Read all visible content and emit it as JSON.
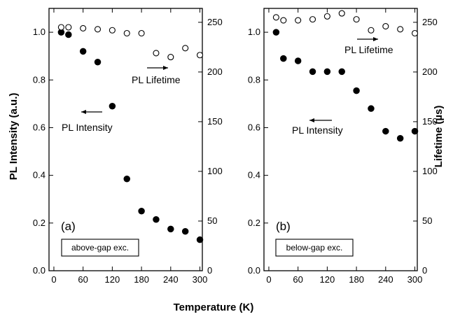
{
  "figure": {
    "shared_xlabel": "Temperature (K)",
    "left_ylabel": "PL Intensity (a.u.)",
    "right_ylabel": "Lifetime (µs)"
  },
  "chart_data": [
    {
      "type": "scatter",
      "panel_label": "(a)",
      "condition_label": "above-gap exc.",
      "xlabel": "Temperature (K)",
      "ylabel": "PL Intensity (a.u.)",
      "y2label": "",
      "xlim": [
        -10,
        305
      ],
      "ylim": [
        0,
        1.1
      ],
      "y2lim": [
        0,
        264
      ],
      "x_ticks": [
        0,
        60,
        120,
        180,
        240,
        300
      ],
      "y_ticks": [
        0.0,
        0.2,
        0.4,
        0.6,
        0.8,
        1.0
      ],
      "y2_ticks": [
        0,
        50,
        100,
        150,
        200,
        250
      ],
      "grid": false,
      "series": [
        {
          "name": "PL Intensity",
          "axis": "left",
          "marker": "filled-circle",
          "x": [
            15,
            30,
            60,
            90,
            120,
            150,
            180,
            210,
            240,
            270,
            300
          ],
          "y": [
            1.0,
            0.99,
            0.92,
            0.875,
            0.69,
            0.385,
            0.25,
            0.215,
            0.175,
            0.165,
            0.13
          ]
        },
        {
          "name": "PL Lifetime",
          "axis": "right",
          "marker": "open-circle",
          "x": [
            15,
            30,
            60,
            90,
            120,
            150,
            180,
            210,
            240,
            270,
            300
          ],
          "y": [
            245,
            245,
            244,
            243,
            242,
            239,
            239,
            219,
            215,
            224,
            217
          ]
        }
      ],
      "annotations": [
        {
          "text": "PL Lifetime",
          "arrow": "right"
        },
        {
          "text": "PL Intensity",
          "arrow": "left"
        }
      ]
    },
    {
      "type": "scatter",
      "panel_label": "(b)",
      "condition_label": "below-gap exc.",
      "xlabel": "",
      "ylabel": "",
      "y2label": "Lifetime (µs)",
      "xlim": [
        -10,
        305
      ],
      "ylim": [
        0,
        1.1
      ],
      "y2lim": [
        0,
        264
      ],
      "x_ticks": [
        0,
        60,
        120,
        180,
        240,
        300
      ],
      "y_ticks": [
        0.0,
        0.2,
        0.4,
        0.6,
        0.8,
        1.0
      ],
      "y2_ticks": [
        0,
        50,
        100,
        150,
        200,
        250
      ],
      "grid": false,
      "series": [
        {
          "name": "PL Intensity",
          "axis": "left",
          "marker": "filled-circle",
          "x": [
            15,
            30,
            60,
            90,
            120,
            150,
            180,
            210,
            240,
            270,
            300
          ],
          "y": [
            1.0,
            0.89,
            0.88,
            0.835,
            0.835,
            0.835,
            0.755,
            0.68,
            0.585,
            0.555,
            0.585
          ]
        },
        {
          "name": "PL Lifetime",
          "axis": "right",
          "marker": "open-circle",
          "x": [
            15,
            30,
            60,
            90,
            120,
            150,
            180,
            210,
            240,
            270,
            300
          ],
          "y": [
            255,
            252,
            252,
            253,
            256,
            259,
            253,
            242,
            246,
            243,
            239
          ]
        }
      ],
      "annotations": [
        {
          "text": "PL Lifetime",
          "arrow": "right"
        },
        {
          "text": "PL Intensity",
          "arrow": "left"
        }
      ]
    }
  ]
}
